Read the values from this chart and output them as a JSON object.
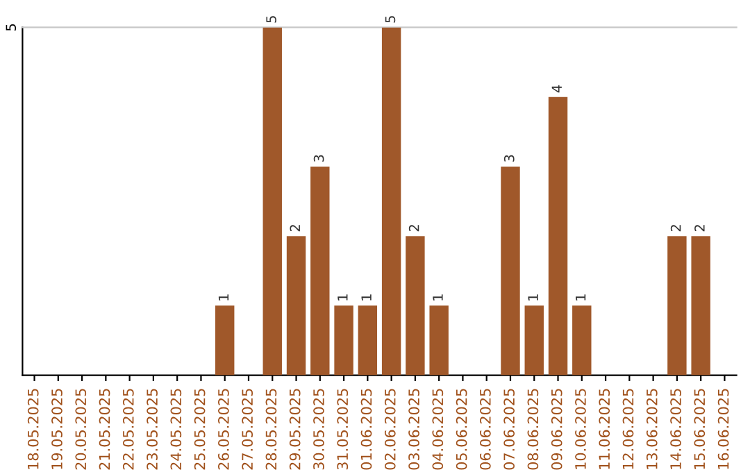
{
  "chart_data": {
    "type": "bar",
    "categories": [
      "18.05.2025",
      "19.05.2025",
      "20.05.2025",
      "21.05.2025",
      "22.05.2025",
      "23.05.2025",
      "24.05.2025",
      "25.05.2025",
      "26.05.2025",
      "27.05.2025",
      "28.05.2025",
      "29.05.2025",
      "30.05.2025",
      "31.05.2025",
      "01.06.2025",
      "02.06.2025",
      "03.06.2025",
      "04.06.2025",
      "05.06.2025",
      "06.06.2025",
      "07.06.2025",
      "08.06.2025",
      "09.06.2025",
      "10.06.2025",
      "11.06.2025",
      "12.06.2025",
      "13.06.2025",
      "14.06.2025",
      "15.06.2025",
      "16.06.2025"
    ],
    "values": [
      0,
      0,
      0,
      0,
      0,
      0,
      0,
      0,
      1,
      0,
      5,
      2,
      3,
      1,
      1,
      5,
      2,
      1,
      0,
      0,
      3,
      1,
      4,
      1,
      0,
      0,
      0,
      2,
      2,
      0
    ],
    "value_labels": [
      null,
      null,
      null,
      null,
      null,
      null,
      null,
      null,
      "1",
      null,
      "5",
      "2",
      "3",
      "1",
      "1",
      "5",
      "2",
      "1",
      null,
      null,
      "3",
      "1",
      "4",
      "1",
      null,
      null,
      null,
      "2",
      "2",
      null
    ],
    "color": "#a0582a",
    "ylim": [
      0,
      5
    ],
    "yticks": [
      5
    ]
  }
}
